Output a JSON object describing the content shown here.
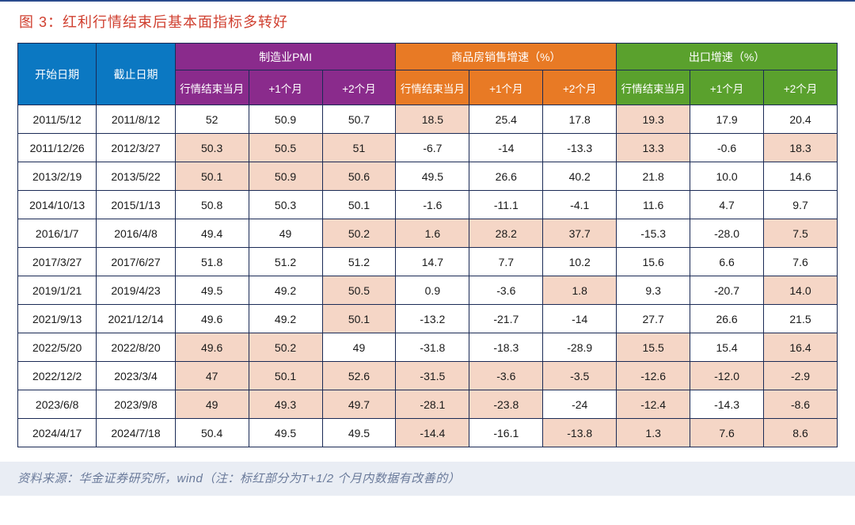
{
  "figure_label": "图 3：",
  "figure_title": "红利行情结束后基本面指标多转好",
  "source_prefix": "资料来源：华金证券研究所，wind（注：标红部分为",
  "source_em": "T+1/2",
  "source_suffix": " 个月内数据有改善的）",
  "colors": {
    "border": "#1a2a55",
    "date_header_bg": "#0b78c2",
    "pmi_header_bg": "#8a2b8c",
    "house_header_bg": "#e87a25",
    "export_header_bg": "#5aa12d",
    "highlight_bg": "#f5d6c6",
    "title_color": "#d04030",
    "footer_bg": "#e9edf4",
    "source_color": "#6a7a9a"
  },
  "headers": {
    "start_date": "开始日期",
    "end_date": "截止日期",
    "group_pmi": "制造业PMI",
    "group_house": "商品房销售增速（%）",
    "group_export": "出口增速（%）",
    "sub_end_month": "行情结束当月",
    "sub_plus1": "+1个月",
    "sub_plus2": "+2个月"
  },
  "column_widths_pct": [
    9.6,
    9.6,
    8.98,
    8.98,
    8.98,
    8.98,
    8.98,
    8.98,
    8.98,
    8.98,
    8.98
  ],
  "rows": [
    {
      "start": "2011/5/12",
      "end": "2011/8/12",
      "cells": [
        {
          "v": "52",
          "hl": false
        },
        {
          "v": "50.9",
          "hl": false
        },
        {
          "v": "50.7",
          "hl": false
        },
        {
          "v": "18.5",
          "hl": true
        },
        {
          "v": "25.4",
          "hl": false
        },
        {
          "v": "17.8",
          "hl": false
        },
        {
          "v": "19.3",
          "hl": true
        },
        {
          "v": "17.9",
          "hl": false
        },
        {
          "v": "20.4",
          "hl": false
        }
      ]
    },
    {
      "start": "2011/12/26",
      "end": "2012/3/27",
      "cells": [
        {
          "v": "50.3",
          "hl": true
        },
        {
          "v": "50.5",
          "hl": true
        },
        {
          "v": "51",
          "hl": true
        },
        {
          "v": "-6.7",
          "hl": false
        },
        {
          "v": "-14",
          "hl": false
        },
        {
          "v": "-13.3",
          "hl": false
        },
        {
          "v": "13.3",
          "hl": true
        },
        {
          "v": "-0.6",
          "hl": false
        },
        {
          "v": "18.3",
          "hl": true
        }
      ]
    },
    {
      "start": "2013/2/19",
      "end": "2013/5/22",
      "cells": [
        {
          "v": "50.1",
          "hl": true
        },
        {
          "v": "50.9",
          "hl": true
        },
        {
          "v": "50.6",
          "hl": true
        },
        {
          "v": "49.5",
          "hl": false
        },
        {
          "v": "26.6",
          "hl": false
        },
        {
          "v": "40.2",
          "hl": false
        },
        {
          "v": "21.8",
          "hl": false
        },
        {
          "v": "10.0",
          "hl": false
        },
        {
          "v": "14.6",
          "hl": false
        }
      ]
    },
    {
      "start": "2014/10/13",
      "end": "2015/1/13",
      "cells": [
        {
          "v": "50.8",
          "hl": false
        },
        {
          "v": "50.3",
          "hl": false
        },
        {
          "v": "50.1",
          "hl": false
        },
        {
          "v": "-1.6",
          "hl": false
        },
        {
          "v": "-11.1",
          "hl": false
        },
        {
          "v": "-4.1",
          "hl": false
        },
        {
          "v": "11.6",
          "hl": false
        },
        {
          "v": "4.7",
          "hl": false
        },
        {
          "v": "9.7",
          "hl": false
        }
      ]
    },
    {
      "start": "2016/1/7",
      "end": "2016/4/8",
      "cells": [
        {
          "v": "49.4",
          "hl": false
        },
        {
          "v": "49",
          "hl": false
        },
        {
          "v": "50.2",
          "hl": true
        },
        {
          "v": "1.6",
          "hl": true
        },
        {
          "v": "28.2",
          "hl": true
        },
        {
          "v": "37.7",
          "hl": true
        },
        {
          "v": "-15.3",
          "hl": false
        },
        {
          "v": "-28.0",
          "hl": false
        },
        {
          "v": "7.5",
          "hl": true
        }
      ]
    },
    {
      "start": "2017/3/27",
      "end": "2017/6/27",
      "cells": [
        {
          "v": "51.8",
          "hl": false
        },
        {
          "v": "51.2",
          "hl": false
        },
        {
          "v": "51.2",
          "hl": false
        },
        {
          "v": "14.7",
          "hl": false
        },
        {
          "v": "7.7",
          "hl": false
        },
        {
          "v": "10.2",
          "hl": false
        },
        {
          "v": "15.6",
          "hl": false
        },
        {
          "v": "6.6",
          "hl": false
        },
        {
          "v": "7.6",
          "hl": false
        }
      ]
    },
    {
      "start": "2019/1/21",
      "end": "2019/4/23",
      "cells": [
        {
          "v": "49.5",
          "hl": false
        },
        {
          "v": "49.2",
          "hl": false
        },
        {
          "v": "50.5",
          "hl": true
        },
        {
          "v": "0.9",
          "hl": false
        },
        {
          "v": "-3.6",
          "hl": false
        },
        {
          "v": "1.8",
          "hl": true
        },
        {
          "v": "9.3",
          "hl": false
        },
        {
          "v": "-20.7",
          "hl": false
        },
        {
          "v": "14.0",
          "hl": true
        }
      ]
    },
    {
      "start": "2021/9/13",
      "end": "2021/12/14",
      "cells": [
        {
          "v": "49.6",
          "hl": false
        },
        {
          "v": "49.2",
          "hl": false
        },
        {
          "v": "50.1",
          "hl": true
        },
        {
          "v": "-13.2",
          "hl": false
        },
        {
          "v": "-21.7",
          "hl": false
        },
        {
          "v": "-14",
          "hl": false
        },
        {
          "v": "27.7",
          "hl": false
        },
        {
          "v": "26.6",
          "hl": false
        },
        {
          "v": "21.5",
          "hl": false
        }
      ]
    },
    {
      "start": "2022/5/20",
      "end": "2022/8/20",
      "cells": [
        {
          "v": "49.6",
          "hl": true
        },
        {
          "v": "50.2",
          "hl": true
        },
        {
          "v": "49",
          "hl": false
        },
        {
          "v": "-31.8",
          "hl": false
        },
        {
          "v": "-18.3",
          "hl": false
        },
        {
          "v": "-28.9",
          "hl": false
        },
        {
          "v": "15.5",
          "hl": true
        },
        {
          "v": "15.4",
          "hl": false
        },
        {
          "v": "16.4",
          "hl": true
        }
      ]
    },
    {
      "start": "2022/12/2",
      "end": "2023/3/4",
      "cells": [
        {
          "v": "47",
          "hl": true
        },
        {
          "v": "50.1",
          "hl": true
        },
        {
          "v": "52.6",
          "hl": true
        },
        {
          "v": "-31.5",
          "hl": true
        },
        {
          "v": "-3.6",
          "hl": true
        },
        {
          "v": "-3.5",
          "hl": true
        },
        {
          "v": "-12.6",
          "hl": true
        },
        {
          "v": "-12.0",
          "hl": true
        },
        {
          "v": "-2.9",
          "hl": true
        }
      ]
    },
    {
      "start": "2023/6/8",
      "end": "2023/9/8",
      "cells": [
        {
          "v": "49",
          "hl": true
        },
        {
          "v": "49.3",
          "hl": true
        },
        {
          "v": "49.7",
          "hl": true
        },
        {
          "v": "-28.1",
          "hl": true
        },
        {
          "v": "-23.8",
          "hl": true
        },
        {
          "v": "-24",
          "hl": false
        },
        {
          "v": "-12.4",
          "hl": true
        },
        {
          "v": "-14.3",
          "hl": false
        },
        {
          "v": "-8.6",
          "hl": true
        }
      ]
    },
    {
      "start": "2024/4/17",
      "end": "2024/7/18",
      "cells": [
        {
          "v": "50.4",
          "hl": false
        },
        {
          "v": "49.5",
          "hl": false
        },
        {
          "v": "49.5",
          "hl": false
        },
        {
          "v": "-14.4",
          "hl": true
        },
        {
          "v": "-16.1",
          "hl": false
        },
        {
          "v": "-13.8",
          "hl": true
        },
        {
          "v": "1.3",
          "hl": true
        },
        {
          "v": "7.6",
          "hl": true
        },
        {
          "v": "8.6",
          "hl": true
        }
      ]
    }
  ]
}
